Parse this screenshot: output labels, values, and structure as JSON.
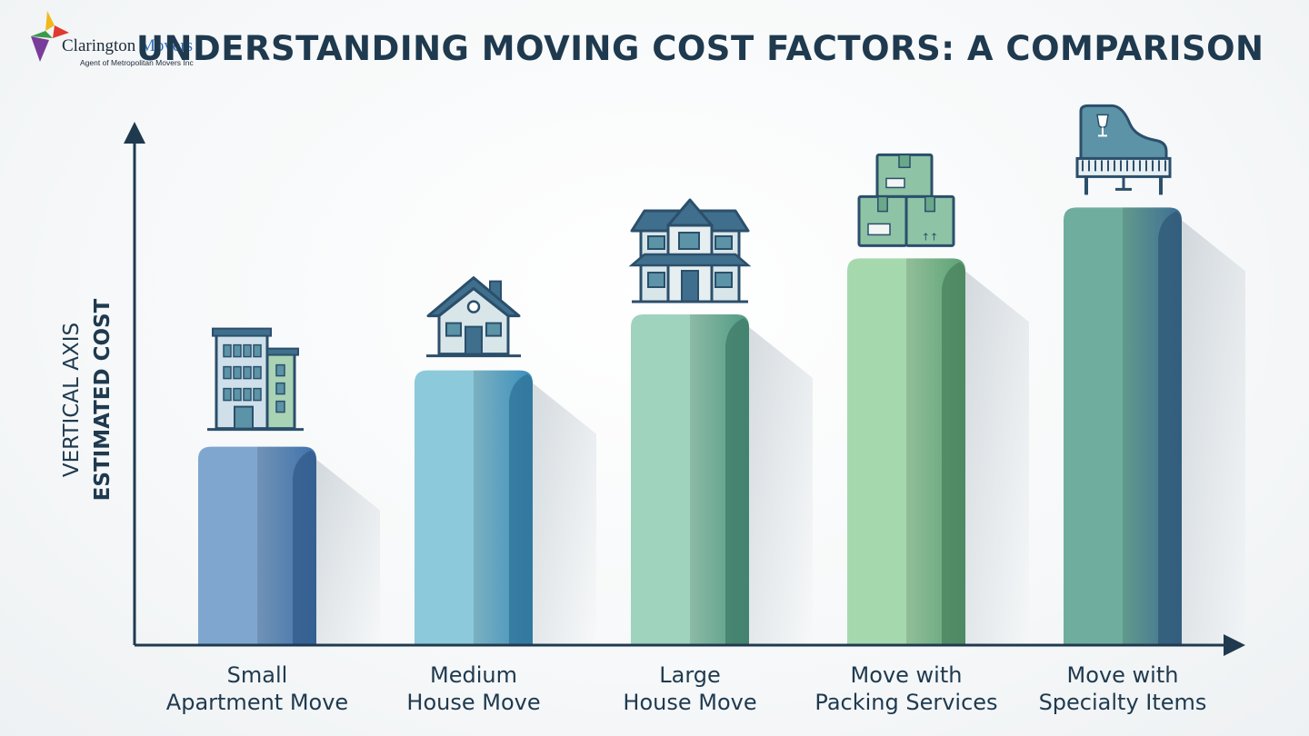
{
  "brand": {
    "name_part1": "Clarington",
    "name_part2": "Movers",
    "tagline": "Agent of Metropolitan Movers Inc",
    "colors": [
      "#f2b81b",
      "#e03a2f",
      "#3a9a4a",
      "#7a3c9a",
      "#2f6fc0"
    ]
  },
  "chart_data": {
    "type": "bar",
    "title": "UNDERSTANDING MOVING COST FACTORS: A COMPARISON",
    "ylabel_line1": "VERTICAL AXIS",
    "ylabel_line2": "ESTIMATED COST",
    "xlabel": "",
    "y_ticks_shown": false,
    "grid": false,
    "ylim": [
      0,
      100
    ],
    "categories": [
      {
        "line1": "Small",
        "line2": "Apartment Move",
        "icon": "apartment-building-icon"
      },
      {
        "line1": "Medium",
        "line2": "House Move",
        "icon": "small-house-icon"
      },
      {
        "line1": "Large",
        "line2": "House Move",
        "icon": "large-house-icon"
      },
      {
        "line1": "Move with",
        "line2": "Packing Services",
        "icon": "packing-boxes-icon"
      },
      {
        "line1": "Move with",
        "line2": "Specialty Items",
        "icon": "piano-icon"
      }
    ],
    "values": [
      39,
      54,
      65,
      76,
      86
    ],
    "bar_colors": [
      [
        "#7fa6cf",
        "#3f72ad"
      ],
      [
        "#8cc9da",
        "#3b8fbd"
      ],
      [
        "#9fd3bd",
        "#4f9a82"
      ],
      [
        "#a6d8ae",
        "#5ba275"
      ],
      [
        "#6fae9e",
        "#3c6e95"
      ]
    ],
    "axis_color": "#1f3a4f"
  }
}
